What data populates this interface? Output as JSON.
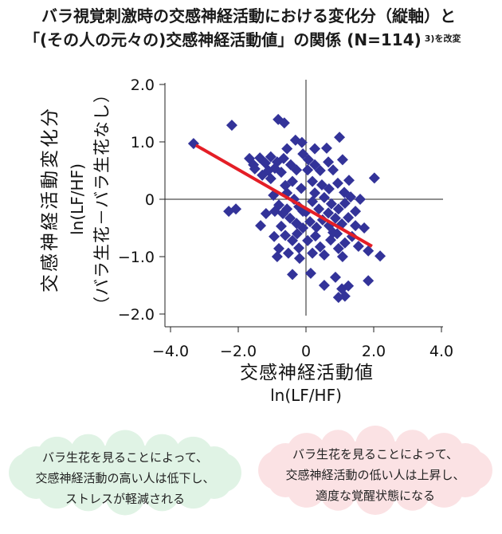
{
  "chart_data": {
    "type": "scatter",
    "title_lines": [
      "バラ視覚刺激時の交感神経活動における変化分（縦軸）と",
      "「(その人の元々の)交感神経活動値」の関係 (N=114)"
    ],
    "title_note": "3)を改変",
    "xlabel_lines": [
      "交感神経活動値",
      "ln(LF/HF)"
    ],
    "ylabel_lines": [
      "交感神経活動変化分",
      "ln(LF/HF)",
      "（バラ生花－バラ生花なし）"
    ],
    "xlim": [
      -4,
      4
    ],
    "ylim": [
      -2,
      2
    ],
    "x_ticks": [
      -4,
      -2,
      0,
      2,
      4
    ],
    "x_tick_labels": [
      "−4.0",
      "−2.0",
      "0",
      "2.0",
      "4.0"
    ],
    "y_ticks": [
      2,
      1,
      0,
      -1,
      -2
    ],
    "y_tick_labels": [
      "2.0",
      "1.0",
      "0",
      "−1.0",
      "−2.0"
    ],
    "grid": false,
    "reference_lines": {
      "x": 0,
      "y": 0
    },
    "marker": "diamond",
    "marker_color": "#333399",
    "series": [
      {
        "x": [
          -3.32,
          -2.19,
          -0.82,
          -0.64,
          -0.31,
          -0.12,
          0.61,
          0.99,
          -1.67,
          -1.55,
          -1.36,
          -1.2,
          -1.04,
          -0.85,
          -0.66,
          -0.92,
          -1.11,
          -1.29,
          -0.73,
          -1.04,
          -0.45,
          -0.28,
          -0.09,
          0.07,
          0.26,
          0.42,
          0.05,
          0.8,
          1.08,
          2.02,
          0.66,
          -0.61,
          -0.4,
          -0.14,
          0.19,
          0.47,
          0.68,
          0.94,
          1.13,
          1.32,
          -2.28,
          -2.07,
          -1.34,
          -0.96,
          -0.8,
          -0.56,
          -0.35,
          -0.21,
          0,
          0.19,
          0.38,
          0.54,
          0.75,
          0.96,
          1.15,
          1.46,
          -0.47,
          -0.28,
          -0.09,
          0.12,
          0.31,
          0.49,
          0.68,
          0.87,
          1.06,
          1.25,
          1.72,
          -0.73,
          -0.94,
          -0.61,
          -0.4,
          -0.8,
          -0.85,
          -0.52,
          -0.21,
          0.05,
          0.28,
          0.42,
          0.73,
          0.92,
          1.15,
          1.36,
          1.55,
          1.84,
          2.19,
          1.08,
          -0.4,
          0.14,
          0.54,
          0.87,
          1.06,
          1.15,
          0.96,
          1.25,
          1.84,
          -0.19,
          -0.09,
          0.26,
          -0.68,
          0.66,
          0.8,
          0.19,
          0.54,
          1.46,
          -1.18,
          -1.51,
          -0.56,
          0.26,
          -0.92,
          1.27,
          1.6,
          -0.26,
          0.96,
          -0.56
        ],
        "y": [
          0.97,
          1.29,
          1.39,
          1.33,
          1.03,
          0.99,
          0.89,
          1.08,
          0.71,
          0.6,
          0.72,
          0.63,
          0.74,
          0.65,
          0.71,
          0.54,
          0.5,
          0.42,
          0.47,
          0.36,
          0.6,
          0.51,
          0.79,
          0.69,
          0.6,
          0.5,
          0.51,
          0.51,
          0.69,
          0.37,
          0.65,
          0.24,
          0.31,
          0.19,
          0.31,
          0.25,
          0.18,
          0.28,
          0.12,
          0.04,
          -0.21,
          -0.17,
          -0.46,
          0.07,
          -0.1,
          -0.17,
          0,
          -0.13,
          -0.22,
          -0.04,
          -0.17,
          0.03,
          -0.08,
          -0.17,
          -0.07,
          -0.21,
          -0.33,
          -0.42,
          -0.5,
          -0.39,
          -0.49,
          -0.36,
          -0.46,
          -0.33,
          -0.43,
          -0.32,
          -0.5,
          -0.47,
          -0.65,
          -0.63,
          -0.72,
          -0.86,
          -1.0,
          -0.94,
          -0.85,
          -0.72,
          -0.64,
          -0.83,
          -0.71,
          -0.6,
          -0.76,
          -0.65,
          -0.82,
          -0.9,
          -0.99,
          -1.0,
          -1.31,
          -1.29,
          -1.5,
          -1.36,
          -1.56,
          -1.69,
          -1.71,
          -1.51,
          -1.42,
          -1.03,
          -0.21,
          0.11,
          -0.25,
          -0.24,
          -0.58,
          -0.94,
          -0.97,
          -0.46,
          -0.25,
          0.53,
          0.88,
          0.88,
          -0.21,
          0.33,
          0,
          -0.6,
          -0.86,
          0.11
        ]
      }
    ],
    "trend_line": {
      "x": [
        -3.25,
        1.95
      ],
      "y": [
        0.94,
        -0.82
      ],
      "color": "#e41e26"
    }
  },
  "callouts": [
    {
      "color": "#e0f3e5",
      "lines": [
        "バラ生花を見ることによって、",
        "交感神経活動の高い人は低下し、",
        "ストレスが軽減される"
      ]
    },
    {
      "color": "#fbe2e4",
      "lines": [
        "バラ生花を見ることによって、",
        "交感神経活動の低い人は上昇し、",
        "適度な覚醒状態になる"
      ]
    }
  ]
}
